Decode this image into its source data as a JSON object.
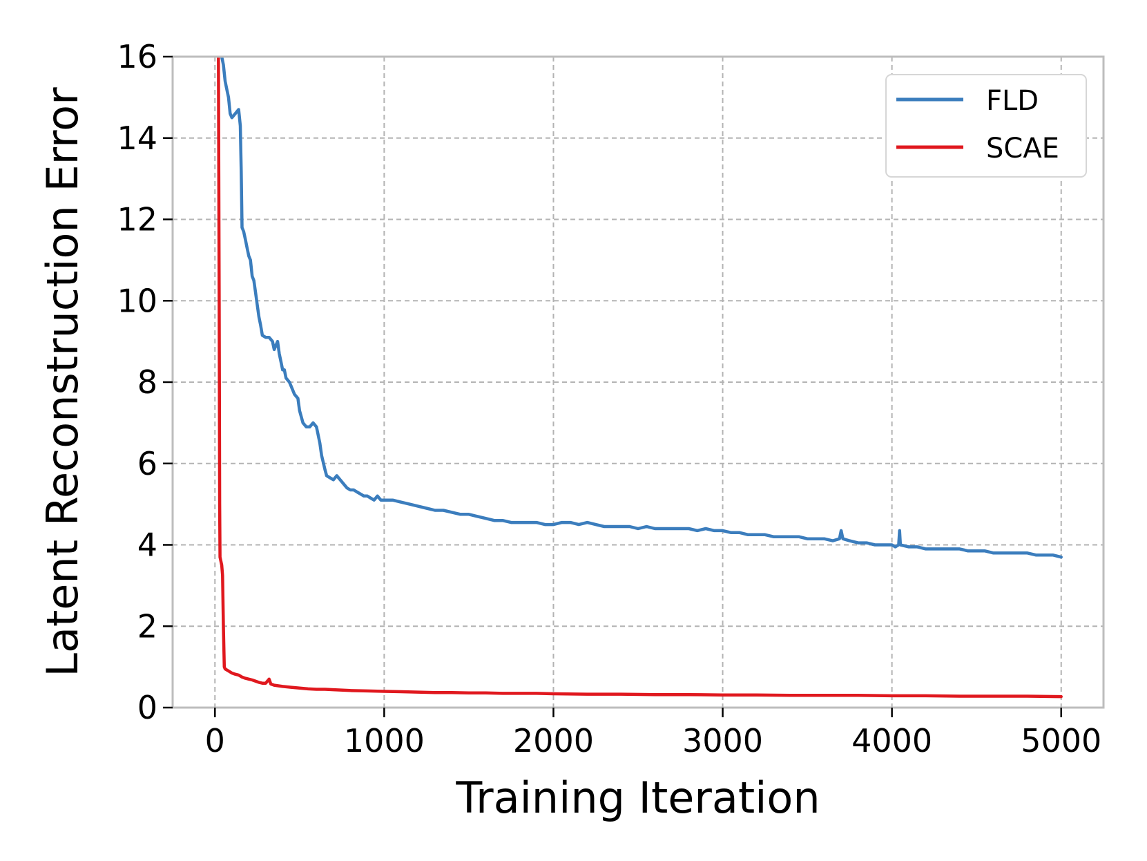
{
  "chart_data": {
    "type": "line",
    "title": "",
    "xlabel": "Training Iteration",
    "ylabel": "Latent Reconstruction Error",
    "xlim": [
      -250,
      5250
    ],
    "ylim": [
      0,
      16
    ],
    "xticks": [
      0,
      1000,
      2000,
      3000,
      4000,
      5000
    ],
    "yticks": [
      0,
      2,
      4,
      6,
      8,
      10,
      12,
      14,
      16
    ],
    "grid": true,
    "legend_position": "top-right",
    "series": [
      {
        "name": "FLD",
        "color": "#3b7dbd",
        "points": [
          [
            20,
            16
          ],
          [
            30,
            16.4
          ],
          [
            40,
            16.0
          ],
          [
            50,
            15.8
          ],
          [
            60,
            15.4
          ],
          [
            70,
            15.2
          ],
          [
            80,
            15.0
          ],
          [
            90,
            14.6
          ],
          [
            100,
            14.5
          ],
          [
            120,
            14.6
          ],
          [
            140,
            14.7
          ],
          [
            150,
            14.3
          ],
          [
            155,
            13.2
          ],
          [
            160,
            11.8
          ],
          [
            170,
            11.7
          ],
          [
            180,
            11.5
          ],
          [
            190,
            11.3
          ],
          [
            200,
            11.1
          ],
          [
            210,
            11.0
          ],
          [
            220,
            10.6
          ],
          [
            230,
            10.5
          ],
          [
            240,
            10.2
          ],
          [
            250,
            9.9
          ],
          [
            260,
            9.6
          ],
          [
            270,
            9.4
          ],
          [
            280,
            9.15
          ],
          [
            300,
            9.1
          ],
          [
            320,
            9.1
          ],
          [
            340,
            9.0
          ],
          [
            350,
            8.8
          ],
          [
            360,
            8.9
          ],
          [
            370,
            9.0
          ],
          [
            380,
            8.7
          ],
          [
            390,
            8.5
          ],
          [
            400,
            8.3
          ],
          [
            410,
            8.3
          ],
          [
            420,
            8.1
          ],
          [
            440,
            8.0
          ],
          [
            450,
            7.9
          ],
          [
            470,
            7.7
          ],
          [
            490,
            7.6
          ],
          [
            500,
            7.3
          ],
          [
            520,
            7.0
          ],
          [
            540,
            6.9
          ],
          [
            560,
            6.9
          ],
          [
            580,
            7.0
          ],
          [
            600,
            6.9
          ],
          [
            620,
            6.5
          ],
          [
            630,
            6.2
          ],
          [
            650,
            5.85
          ],
          [
            660,
            5.7
          ],
          [
            680,
            5.65
          ],
          [
            700,
            5.6
          ],
          [
            720,
            5.7
          ],
          [
            740,
            5.6
          ],
          [
            760,
            5.5
          ],
          [
            780,
            5.4
          ],
          [
            800,
            5.35
          ],
          [
            820,
            5.35
          ],
          [
            840,
            5.3
          ],
          [
            860,
            5.25
          ],
          [
            880,
            5.2
          ],
          [
            900,
            5.2
          ],
          [
            920,
            5.15
          ],
          [
            940,
            5.1
          ],
          [
            960,
            5.2
          ],
          [
            980,
            5.1
          ],
          [
            1000,
            5.1
          ],
          [
            1050,
            5.1
          ],
          [
            1100,
            5.05
          ],
          [
            1150,
            5.0
          ],
          [
            1200,
            4.95
          ],
          [
            1250,
            4.9
          ],
          [
            1300,
            4.85
          ],
          [
            1350,
            4.85
          ],
          [
            1400,
            4.8
          ],
          [
            1450,
            4.75
          ],
          [
            1500,
            4.75
          ],
          [
            1550,
            4.7
          ],
          [
            1600,
            4.65
          ],
          [
            1650,
            4.6
          ],
          [
            1700,
            4.6
          ],
          [
            1750,
            4.55
          ],
          [
            1800,
            4.55
          ],
          [
            1850,
            4.55
          ],
          [
            1900,
            4.55
          ],
          [
            1950,
            4.5
          ],
          [
            2000,
            4.5
          ],
          [
            2050,
            4.55
          ],
          [
            2100,
            4.55
          ],
          [
            2150,
            4.5
          ],
          [
            2200,
            4.55
          ],
          [
            2250,
            4.5
          ],
          [
            2300,
            4.45
          ],
          [
            2350,
            4.45
          ],
          [
            2400,
            4.45
          ],
          [
            2450,
            4.45
          ],
          [
            2500,
            4.4
          ],
          [
            2550,
            4.45
          ],
          [
            2600,
            4.4
          ],
          [
            2650,
            4.4
          ],
          [
            2700,
            4.4
          ],
          [
            2750,
            4.4
          ],
          [
            2800,
            4.4
          ],
          [
            2850,
            4.35
          ],
          [
            2900,
            4.4
          ],
          [
            2950,
            4.35
          ],
          [
            3000,
            4.35
          ],
          [
            3050,
            4.3
          ],
          [
            3100,
            4.3
          ],
          [
            3150,
            4.25
          ],
          [
            3200,
            4.25
          ],
          [
            3250,
            4.25
          ],
          [
            3300,
            4.2
          ],
          [
            3350,
            4.2
          ],
          [
            3400,
            4.2
          ],
          [
            3450,
            4.2
          ],
          [
            3500,
            4.15
          ],
          [
            3550,
            4.15
          ],
          [
            3600,
            4.15
          ],
          [
            3650,
            4.1
          ],
          [
            3690,
            4.15
          ],
          [
            3700,
            4.35
          ],
          [
            3710,
            4.15
          ],
          [
            3750,
            4.1
          ],
          [
            3800,
            4.05
          ],
          [
            3850,
            4.05
          ],
          [
            3900,
            4.0
          ],
          [
            3950,
            4.0
          ],
          [
            4000,
            4.0
          ],
          [
            4020,
            3.95
          ],
          [
            4040,
            4.0
          ],
          [
            4045,
            4.35
          ],
          [
            4050,
            4.0
          ],
          [
            4100,
            3.95
          ],
          [
            4150,
            3.95
          ],
          [
            4200,
            3.9
          ],
          [
            4250,
            3.9
          ],
          [
            4300,
            3.9
          ],
          [
            4350,
            3.9
          ],
          [
            4400,
            3.9
          ],
          [
            4450,
            3.85
          ],
          [
            4500,
            3.85
          ],
          [
            4550,
            3.85
          ],
          [
            4600,
            3.8
          ],
          [
            4650,
            3.8
          ],
          [
            4700,
            3.8
          ],
          [
            4750,
            3.8
          ],
          [
            4800,
            3.8
          ],
          [
            4850,
            3.75
          ],
          [
            4900,
            3.75
          ],
          [
            4950,
            3.75
          ],
          [
            5000,
            3.7
          ]
        ]
      },
      {
        "name": "SCAE",
        "color": "#e0181e",
        "points": [
          [
            20,
            16.6
          ],
          [
            25,
            10.0
          ],
          [
            28,
            5.0
          ],
          [
            30,
            3.7
          ],
          [
            40,
            3.5
          ],
          [
            45,
            3.25
          ],
          [
            50,
            2.0
          ],
          [
            55,
            1.0
          ],
          [
            60,
            0.95
          ],
          [
            80,
            0.9
          ],
          [
            100,
            0.85
          ],
          [
            120,
            0.82
          ],
          [
            140,
            0.8
          ],
          [
            160,
            0.75
          ],
          [
            180,
            0.72
          ],
          [
            200,
            0.7
          ],
          [
            220,
            0.68
          ],
          [
            240,
            0.65
          ],
          [
            260,
            0.62
          ],
          [
            280,
            0.6
          ],
          [
            300,
            0.6
          ],
          [
            320,
            0.7
          ],
          [
            330,
            0.58
          ],
          [
            350,
            0.55
          ],
          [
            400,
            0.52
          ],
          [
            450,
            0.5
          ],
          [
            500,
            0.48
          ],
          [
            550,
            0.46
          ],
          [
            600,
            0.45
          ],
          [
            650,
            0.45
          ],
          [
            700,
            0.44
          ],
          [
            800,
            0.42
          ],
          [
            900,
            0.41
          ],
          [
            1000,
            0.4
          ],
          [
            1100,
            0.39
          ],
          [
            1200,
            0.38
          ],
          [
            1300,
            0.37
          ],
          [
            1400,
            0.37
          ],
          [
            1500,
            0.36
          ],
          [
            1600,
            0.36
          ],
          [
            1700,
            0.35
          ],
          [
            1800,
            0.35
          ],
          [
            1900,
            0.35
          ],
          [
            2000,
            0.34
          ],
          [
            2200,
            0.33
          ],
          [
            2400,
            0.33
          ],
          [
            2600,
            0.32
          ],
          [
            2800,
            0.32
          ],
          [
            3000,
            0.31
          ],
          [
            3200,
            0.31
          ],
          [
            3400,
            0.3
          ],
          [
            3600,
            0.3
          ],
          [
            3800,
            0.3
          ],
          [
            4000,
            0.29
          ],
          [
            4200,
            0.29
          ],
          [
            4400,
            0.28
          ],
          [
            4600,
            0.28
          ],
          [
            4800,
            0.28
          ],
          [
            5000,
            0.27
          ]
        ]
      }
    ]
  }
}
